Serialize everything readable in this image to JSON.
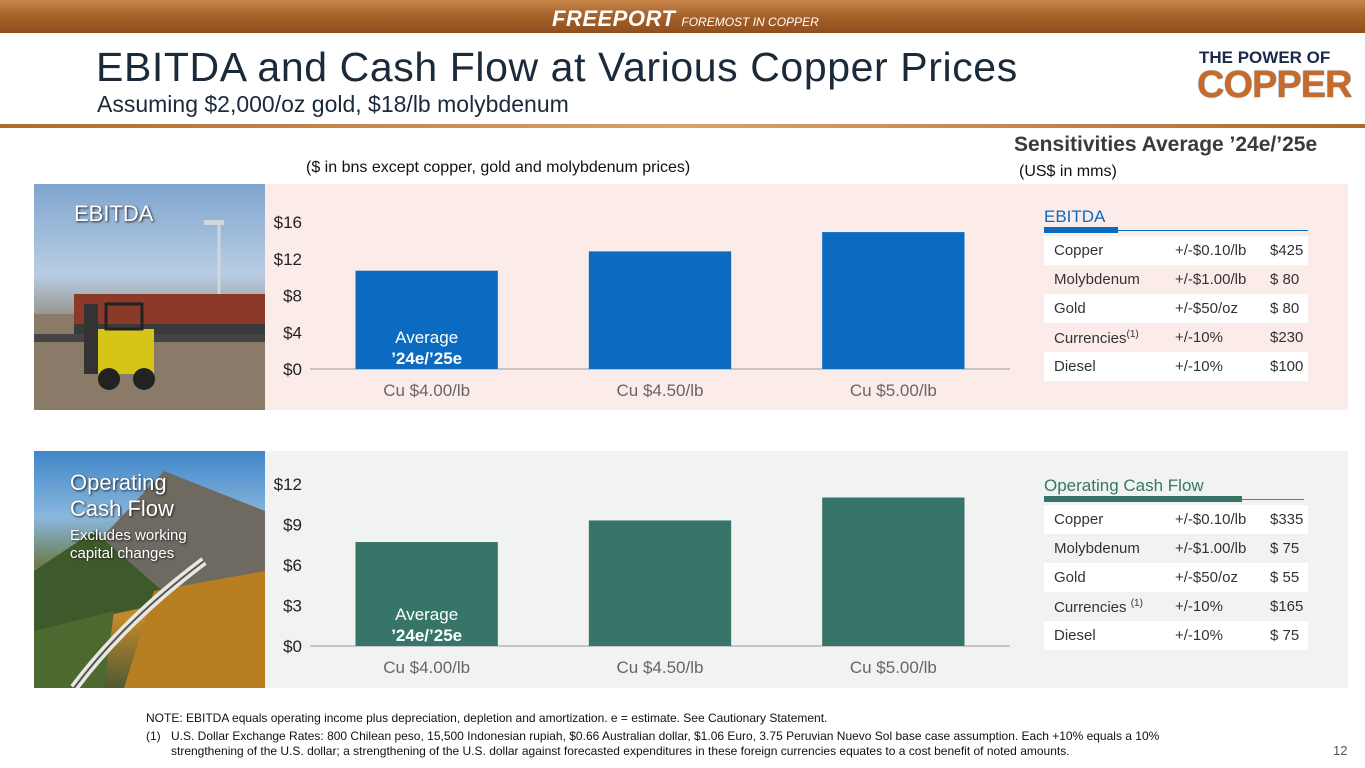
{
  "header": {
    "brand_name": "FREEPORT",
    "brand_tagline": "FOREMOST IN COPPER",
    "title": "EBITDA and Cash Flow at Various Copper Prices",
    "subtitle": "Assuming $2,000/oz gold, $18/lb molybdenum",
    "logo_top": "THE POWER OF",
    "logo_main": "COPPER"
  },
  "units_note": "($ in bns except copper, gold and molybdenum prices)",
  "sensitivities": {
    "title": "Sensitivities Average ’24e/’25e",
    "units": "(US$ in mms)",
    "ebitda": {
      "heading": "EBITDA",
      "rows": [
        {
          "item": "Copper",
          "sup": "",
          "change": "+/-$0.10/lb",
          "impact": "$425"
        },
        {
          "item": "Molybdenum",
          "sup": "",
          "change": "+/-$1.00/lb",
          "impact": "$  80"
        },
        {
          "item": "Gold",
          "sup": "",
          "change": "+/-$50/oz",
          "impact": "$  80"
        },
        {
          "item": "Currencies",
          "sup": "(1)",
          "change": "+/-10%",
          "impact": "$230"
        },
        {
          "item": "Diesel",
          "sup": "",
          "change": "+/-10%",
          "impact": "$100"
        }
      ]
    },
    "ocf": {
      "heading": "Operating Cash Flow",
      "rows": [
        {
          "item": "Copper",
          "sup": "",
          "change": "+/-$0.10/lb",
          "impact": "$335"
        },
        {
          "item": "Molybdenum",
          "sup": "",
          "change": "+/-$1.00/lb",
          "impact": "$  75"
        },
        {
          "item": "Gold",
          "sup": "",
          "change": "+/-$50/oz",
          "impact": "$  55"
        },
        {
          "item": "Currencies ",
          "sup": "(1)",
          "change": "+/-10%",
          "impact": "$165"
        },
        {
          "item": "Diesel",
          "sup": "",
          "change": "+/-10%",
          "impact": "$  75"
        }
      ]
    }
  },
  "panels": {
    "ebitda": {
      "label": "EBITDA"
    },
    "ocf": {
      "label_line1": "Operating",
      "label_line2": "Cash Flow",
      "sub_line1": "Excludes working",
      "sub_line2": "capital changes"
    }
  },
  "chart_data": [
    {
      "type": "bar",
      "categories": [
        "Cu $4.00/lb",
        "Cu $4.50/lb",
        "Cu $5.00/lb"
      ],
      "values": [
        10.7,
        12.8,
        14.9
      ],
      "ylim": [
        0,
        16
      ],
      "yticks": [
        "$0",
        "$4",
        "$8",
        "$12",
        "$16"
      ],
      "ytick_values": [
        0,
        4,
        8,
        12,
        16
      ],
      "annotation_line1": "Average",
      "annotation_line2": "’24e/’25e",
      "bar_color": "#0a6bc0"
    },
    {
      "type": "bar",
      "categories": [
        "Cu $4.00/lb",
        "Cu $4.50/lb",
        "Cu $5.00/lb"
      ],
      "values": [
        7.7,
        9.3,
        11.0
      ],
      "ylim": [
        0,
        12
      ],
      "yticks": [
        "$0",
        "$3",
        "$6",
        "$9",
        "$12"
      ],
      "ytick_values": [
        0,
        3,
        6,
        9,
        12
      ],
      "annotation_line1": "Average",
      "annotation_line2": "’24e/’25e",
      "bar_color": "#377568"
    }
  ],
  "footnotes": {
    "note": "NOTE: EBITDA equals operating income plus depreciation, depletion and amortization. e = estimate. See Cautionary Statement.",
    "fn1_num": "(1)",
    "fn1_text": "U.S. Dollar Exchange Rates: 800 Chilean peso, 15,500 Indonesian rupiah, $0.66 Australian dollar, $1.06 Euro, 3.75 Peruvian Nuevo Sol base case assumption. Each +10% equals a 10% strengthening of the U.S. dollar; a strengthening of the U.S. dollar against forecasted expenditures in these foreign currencies equates to a cost benefit of noted amounts."
  },
  "page_number": "12",
  "colors": {
    "ebitda_accent": "#0a6bc0",
    "ocf_accent": "#377568",
    "ebitda_head_line": "#0a6bc0",
    "ocf_head_line": "#6a8c3a"
  }
}
